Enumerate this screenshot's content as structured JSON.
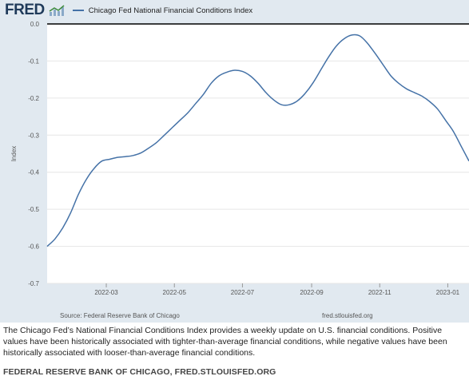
{
  "header": {
    "logo_text": "FRED",
    "logo_icon": "fred-chart-icon",
    "legend_label": "Chicago Fed National Financial Conditions Index"
  },
  "chart_data": {
    "type": "line",
    "title": "",
    "xlabel": "",
    "ylabel": "Index",
    "ylim": [
      -0.7,
      0.0
    ],
    "xlim": [
      "2022-01-07",
      "2023-01-20"
    ],
    "yticks": [
      0.0,
      -0.1,
      -0.2,
      -0.3,
      -0.4,
      -0.5,
      -0.6,
      -0.7
    ],
    "ytick_labels": [
      "0.0",
      "-0.1",
      "-0.2",
      "-0.3",
      "-0.4",
      "-0.5",
      "-0.6",
      "-0.7"
    ],
    "xticks": [
      "2022-03-01",
      "2022-05-01",
      "2022-07-01",
      "2022-09-01",
      "2022-11-01",
      "2023-01-01"
    ],
    "xtick_labels": [
      "2022-03",
      "2022-05",
      "2022-07",
      "2022-09",
      "2022-11",
      "2023-01"
    ],
    "grid": true,
    "legend_position": "top-left",
    "series": [
      {
        "name": "Chicago Fed National Financial Conditions Index",
        "color": "#4572a7",
        "x": [
          "2022-01-07",
          "2022-01-14",
          "2022-01-21",
          "2022-01-28",
          "2022-02-04",
          "2022-02-11",
          "2022-02-18",
          "2022-02-25",
          "2022-03-04",
          "2022-03-11",
          "2022-03-18",
          "2022-03-25",
          "2022-04-01",
          "2022-04-08",
          "2022-04-15",
          "2022-04-22",
          "2022-04-29",
          "2022-05-06",
          "2022-05-13",
          "2022-05-20",
          "2022-05-27",
          "2022-06-03",
          "2022-06-10",
          "2022-06-17",
          "2022-06-24",
          "2022-07-01",
          "2022-07-08",
          "2022-07-15",
          "2022-07-22",
          "2022-07-29",
          "2022-08-05",
          "2022-08-12",
          "2022-08-19",
          "2022-08-26",
          "2022-09-02",
          "2022-09-09",
          "2022-09-16",
          "2022-09-23",
          "2022-09-30",
          "2022-10-07",
          "2022-10-14",
          "2022-10-21",
          "2022-10-28",
          "2022-11-04",
          "2022-11-11",
          "2022-11-18",
          "2022-11-25",
          "2022-12-02",
          "2022-12-09",
          "2022-12-16",
          "2022-12-23",
          "2022-12-30",
          "2023-01-06",
          "2023-01-13",
          "2023-01-20"
        ],
        "y": [
          -0.6,
          -0.58,
          -0.55,
          -0.51,
          -0.46,
          -0.42,
          -0.39,
          -0.37,
          -0.365,
          -0.36,
          -0.358,
          -0.355,
          -0.348,
          -0.335,
          -0.32,
          -0.3,
          -0.28,
          -0.26,
          -0.24,
          -0.215,
          -0.19,
          -0.16,
          -0.14,
          -0.13,
          -0.125,
          -0.128,
          -0.14,
          -0.16,
          -0.185,
          -0.205,
          -0.218,
          -0.218,
          -0.208,
          -0.188,
          -0.16,
          -0.125,
          -0.09,
          -0.06,
          -0.04,
          -0.03,
          -0.032,
          -0.052,
          -0.08,
          -0.11,
          -0.14,
          -0.16,
          -0.175,
          -0.185,
          -0.195,
          -0.21,
          -0.23,
          -0.26,
          -0.29,
          -0.33,
          -0.37
        ]
      }
    ]
  },
  "source": {
    "label": "Source: Federal Reserve Bank of Chicago",
    "site": "fred.stlouisfed.org"
  },
  "notes": "The Chicago Fed’s National Financial Conditions Index provides a weekly update on U.S. financial conditions. Positive values have been historically associated with tighter-than-average financial conditions, while negative values have been historically associated with looser-than-average financial conditions.",
  "footer": "FEDERAL RESERVE BANK OF CHICAGO, FRED.STLOUISFED.ORG"
}
